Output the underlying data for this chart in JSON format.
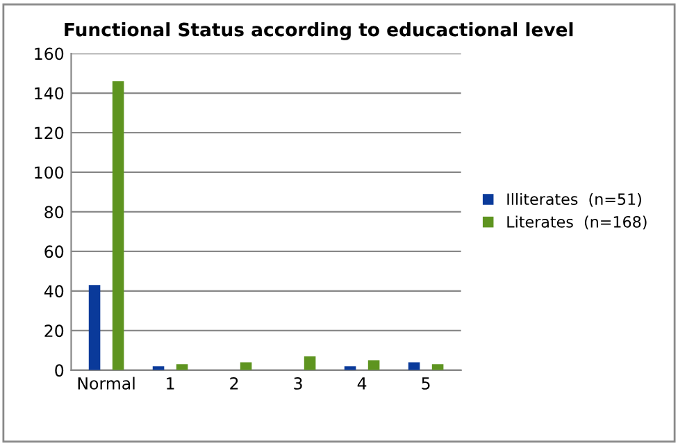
{
  "chart_data": {
    "type": "bar",
    "title": "Functional Status according to educactional level",
    "categories": [
      "Normal",
      "1",
      "2",
      "3",
      "4",
      "5"
    ],
    "series": [
      {
        "name": "Illiterates  (n=51)",
        "color": "#0a3a9a",
        "values": [
          43,
          2,
          0,
          0,
          2,
          4
        ]
      },
      {
        "name": "Literates  (n=168)",
        "color": "#5e9420",
        "values": [
          146,
          3,
          4,
          7,
          5,
          3
        ]
      }
    ],
    "ylim": [
      0,
      160
    ],
    "yticks": [
      0,
      20,
      40,
      60,
      80,
      100,
      120,
      140,
      160
    ],
    "grid": "y",
    "legend": "right"
  }
}
